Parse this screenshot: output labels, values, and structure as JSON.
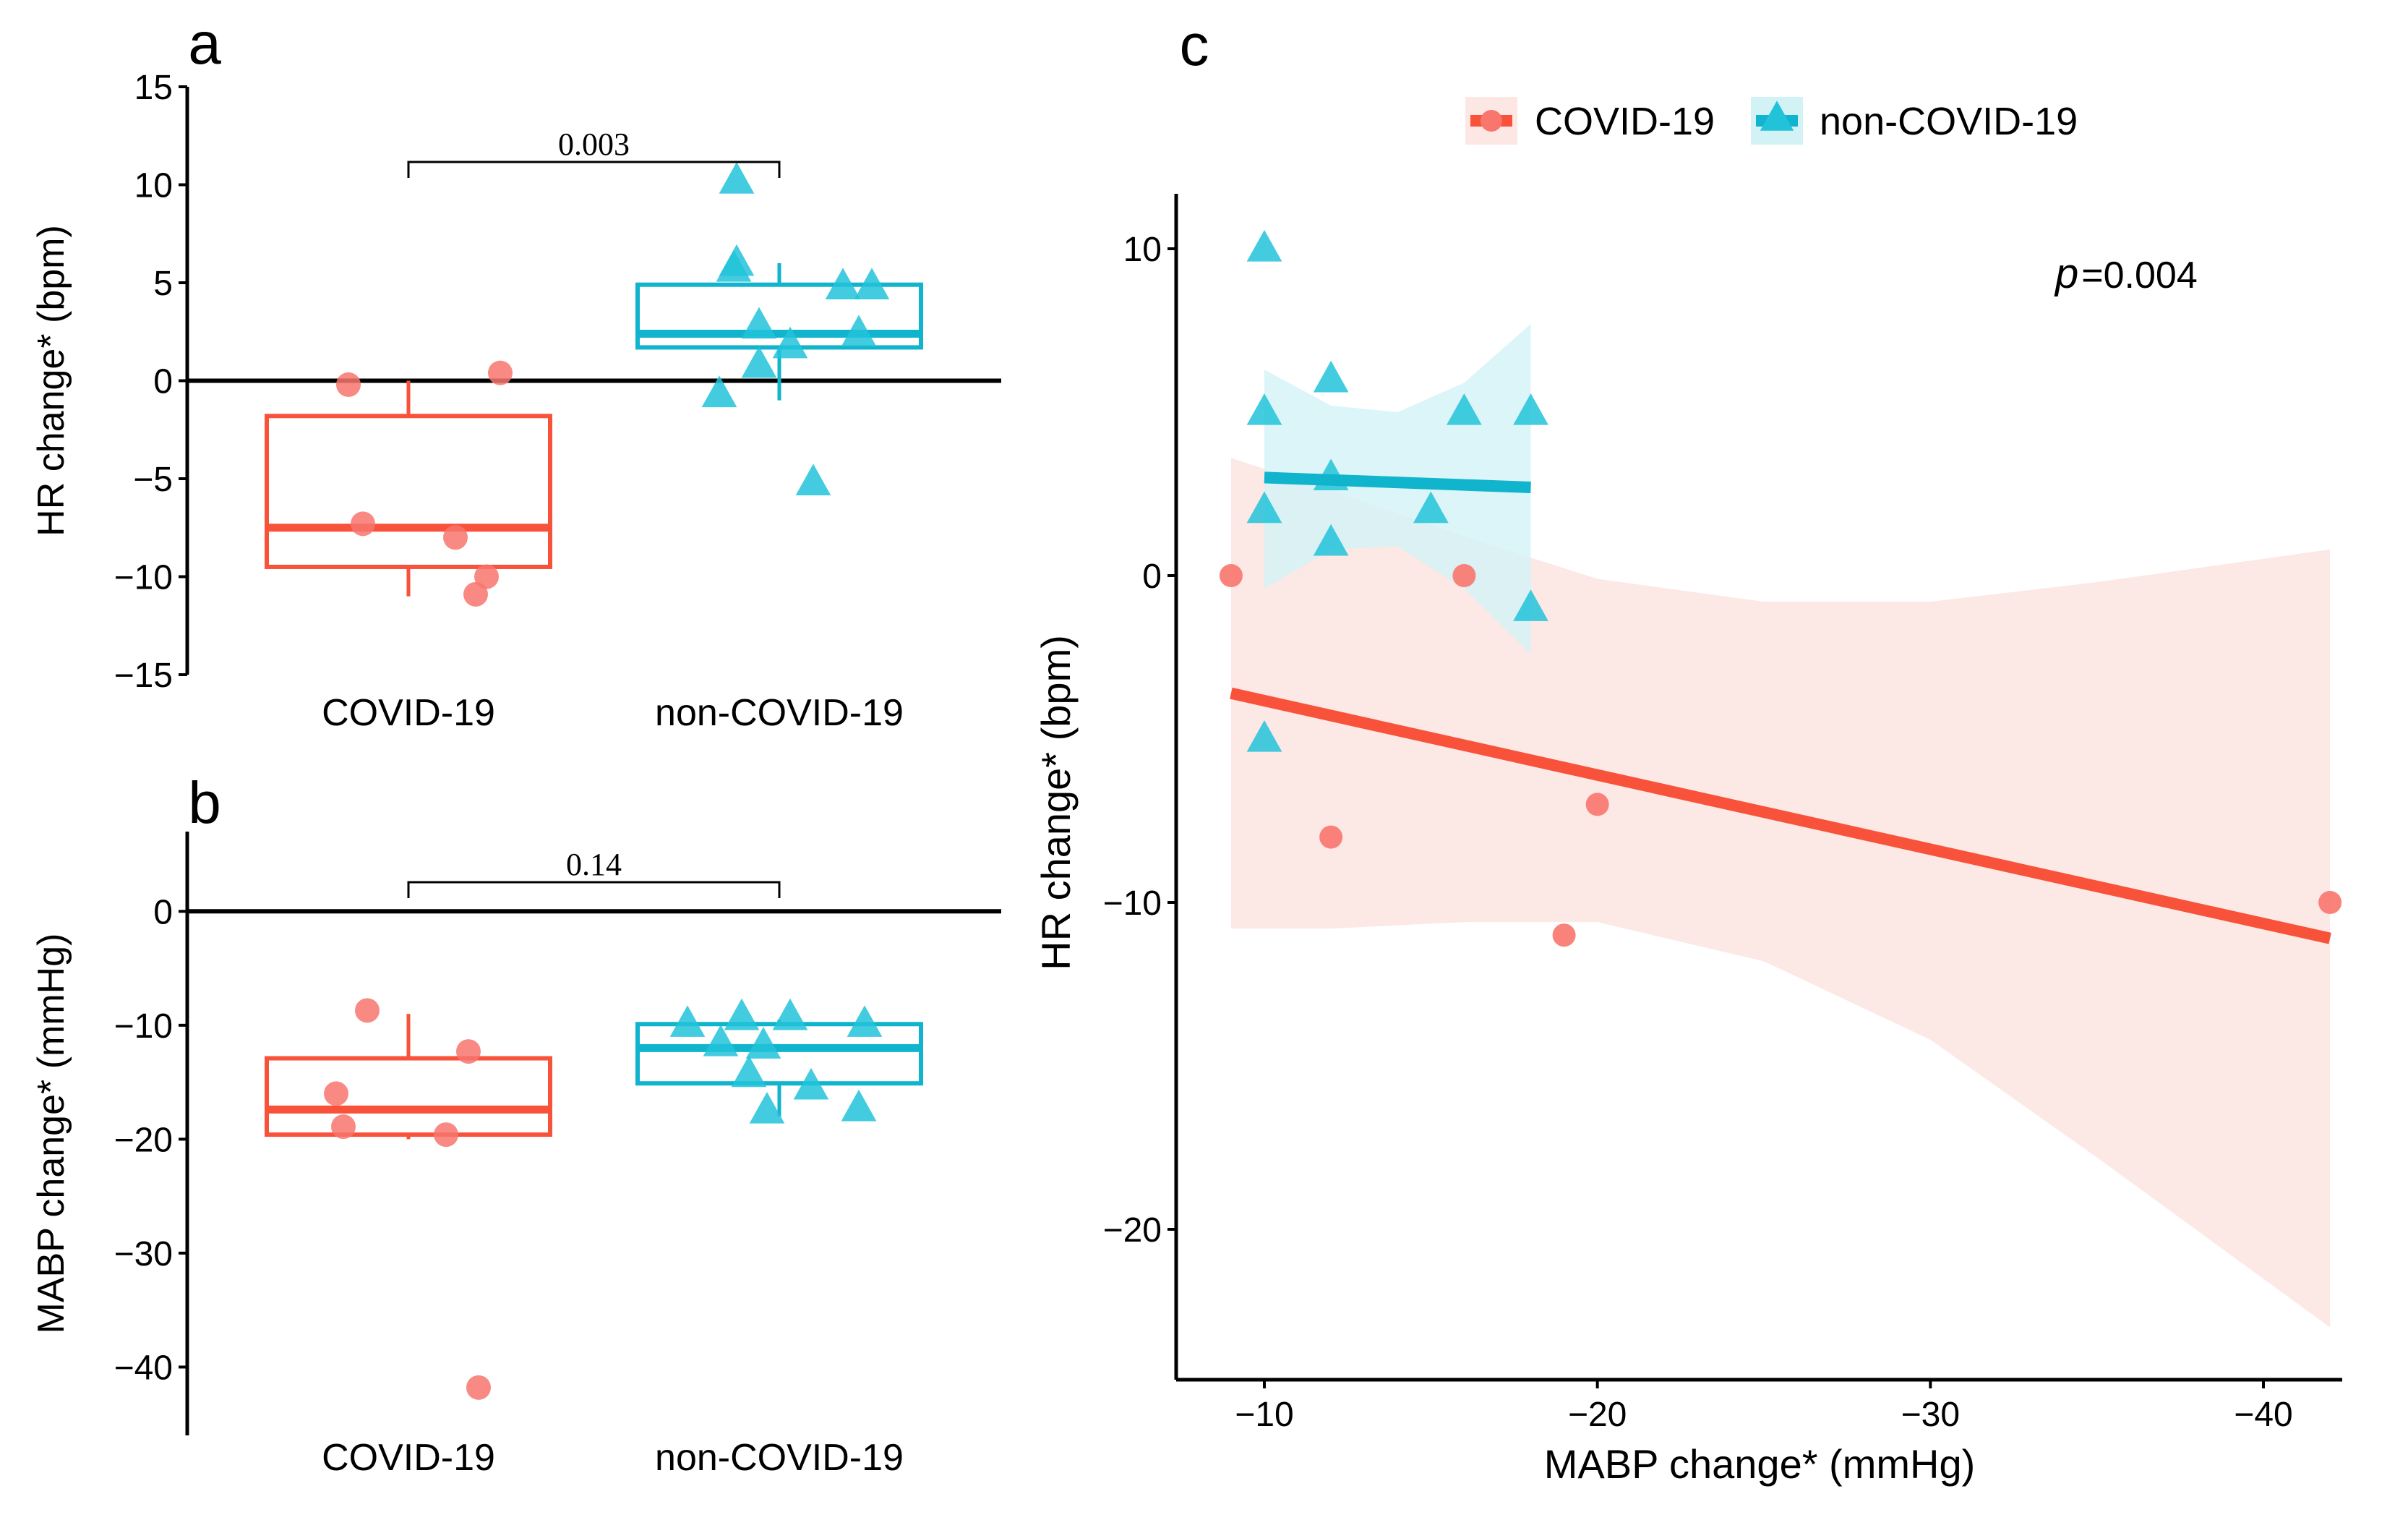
{
  "chart_data": [
    {
      "panel": "a",
      "type": "box",
      "title": "",
      "xlabel": "",
      "ylabel": "HR change* (bpm)",
      "ylim": [
        -15,
        15
      ],
      "yticks": [
        15,
        10,
        5,
        0,
        -5,
        -10,
        -15
      ],
      "ytick_labels": [
        "15",
        "10",
        "5",
        "0",
        "−5",
        "−10",
        "−15"
      ],
      "categories": [
        "COVID-19",
        "non-COVID-19"
      ],
      "boxes": [
        {
          "group": "COVID-19",
          "color": "#F8523A",
          "min": -11,
          "q1": -9.5,
          "median": -7.5,
          "q3": -1.8,
          "max": 0
        },
        {
          "group": "non-COVID-19",
          "color": "#10B4CC",
          "min": -1,
          "q1": 1.7,
          "median": 2.4,
          "q3": 4.9,
          "max": 6
        }
      ],
      "points": [
        {
          "group": "COVID-19",
          "values": [
            -0.2,
            0.4,
            -7.3,
            -8.0,
            -10.0,
            -10.9
          ]
        },
        {
          "group": "non-COVID-19",
          "values": [
            10.2,
            6.0,
            5.7,
            2.8,
            1.8,
            0.8,
            -0.7,
            4.8,
            4.8,
            2.4,
            -5.2
          ]
        }
      ],
      "reference_line": 0,
      "annotation": {
        "text": "0.003",
        "between": [
          "COVID-19",
          "non-COVID-19"
        ]
      }
    },
    {
      "panel": "b",
      "type": "box",
      "title": "",
      "xlabel": "",
      "ylabel": "MABP change* (mmHg)",
      "ylim": [
        -46,
        7
      ],
      "yticks": [
        0,
        -10,
        -20,
        -30,
        -40
      ],
      "ytick_labels": [
        "0",
        "−10",
        "−20",
        "−30",
        "−40"
      ],
      "categories": [
        "COVID-19",
        "non-COVID-19"
      ],
      "boxes": [
        {
          "group": "COVID-19",
          "color": "#F8523A",
          "min": -20,
          "q1": -19.6,
          "median": -17.4,
          "q3": -12.9,
          "max": -9
        },
        {
          "group": "non-COVID-19",
          "color": "#10B4CC",
          "min": -18,
          "q1": -15.1,
          "median": -12.0,
          "q3": -9.9,
          "max": -9.5
        }
      ],
      "points": [
        {
          "group": "COVID-19",
          "values": [
            -8.7,
            -12.3,
            -16.0,
            -18.9,
            -19.6,
            -41.8
          ]
        },
        {
          "group": "non-COVID-19",
          "values": [
            -9.9,
            -11.6,
            -14.3,
            -11.8,
            -9.3,
            -9.3,
            -17.5,
            -15.4,
            -9.9,
            -17.3
          ]
        }
      ],
      "reference_line": 0,
      "annotation": {
        "text": "0.14",
        "between": [
          "COVID-19",
          "non-COVID-19"
        ]
      }
    },
    {
      "panel": "c",
      "type": "scatter",
      "title": "",
      "xlabel": "MABP change* (mmHg)",
      "ylabel": "HR change* (bpm)",
      "xlim": [
        -7.5,
        -42.5
      ],
      "ylim": [
        -24.5,
        11.5
      ],
      "x_reversed": true,
      "xticks": [
        -10,
        -20,
        -30,
        -40
      ],
      "xtick_labels": [
        "−10",
        "−20",
        "−30",
        "−40"
      ],
      "yticks": [
        10,
        0,
        -10,
        -20
      ],
      "ytick_labels": [
        "10",
        "0",
        "−10",
        "−20"
      ],
      "legend": {
        "position": "top",
        "entries": [
          "COVID-19",
          "non-COVID-19"
        ]
      },
      "annotation_prefix": "p",
      "annotation_value": "=0.004",
      "series": [
        {
          "name": "COVID-19",
          "color": "#F8523A",
          "marker": "circle",
          "points": [
            [
              -9,
              0
            ],
            [
              -16,
              0
            ],
            [
              -12,
              -8
            ],
            [
              -20,
              -7
            ],
            [
              -19,
              -11
            ],
            [
              -42,
              -10
            ]
          ],
          "fit": {
            "x": [
              -9,
              -42
            ],
            "y": [
              -3.6,
              -11.1
            ]
          },
          "band": {
            "x": [
              -9,
              -12,
              -16,
              -20,
              -25,
              -30,
              -35,
              -42
            ],
            "upper": [
              3.6,
              2.6,
              1.2,
              -0.1,
              -0.8,
              -0.8,
              -0.2,
              0.8
            ],
            "lower": [
              -10.8,
              -10.8,
              -10.6,
              -10.6,
              -11.8,
              -14.2,
              -17.8,
              -23.0
            ]
          }
        },
        {
          "name": "non-COVID-19",
          "color": "#10B4CC",
          "marker": "triangle",
          "points": [
            [
              -10,
              10
            ],
            [
              -10,
              5
            ],
            [
              -12,
              6
            ],
            [
              -16,
              5
            ],
            [
              -18,
              5
            ],
            [
              -10,
              2
            ],
            [
              -12,
              3
            ],
            [
              -15,
              2
            ],
            [
              -12,
              1
            ],
            [
              -18,
              -1
            ],
            [
              -10,
              -5
            ]
          ],
          "fit": {
            "x": [
              -10,
              -18
            ],
            "y": [
              3.0,
              2.7
            ]
          },
          "band": {
            "x": [
              -10,
              -12,
              -14,
              -16,
              -18
            ],
            "upper": [
              6.3,
              5.2,
              5.0,
              5.9,
              7.7
            ],
            "lower": [
              -0.4,
              0.8,
              0.9,
              -0.4,
              -2.4
            ]
          }
        }
      ]
    }
  ],
  "panel_labels": {
    "a": "a",
    "b": "b",
    "c": "c"
  }
}
